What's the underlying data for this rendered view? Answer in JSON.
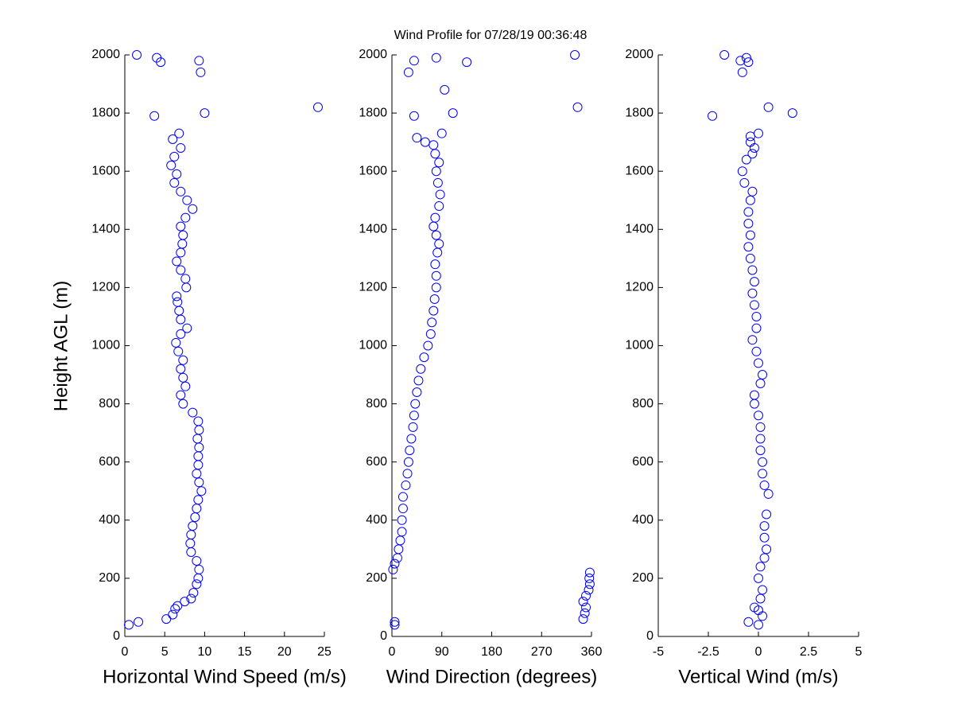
{
  "chart_data": [
    {
      "type": "scatter",
      "ylabel": "Height AGL (m)",
      "xlabel": "Horizontal Wind Speed (m/s)",
      "color": "#0000ff",
      "xlim": [
        0,
        25
      ],
      "xticks": [
        0,
        5,
        10,
        15,
        20,
        25
      ],
      "ylim": [
        0,
        2000
      ],
      "yticks": [
        0,
        200,
        400,
        600,
        800,
        1000,
        1200,
        1400,
        1600,
        1800,
        2000
      ],
      "x": [
        1.5,
        4,
        4.5,
        9.3,
        9.5,
        10,
        24.2,
        3.7,
        0.5,
        1.7,
        5.2,
        6,
        6.3,
        6.6,
        7.5,
        8.3,
        8.6,
        9,
        9.2,
        9.3,
        9,
        8.3,
        8.2,
        8.3,
        8.5,
        8.8,
        9,
        9.2,
        9.6,
        9.3,
        9,
        9.2,
        9.2,
        9.3,
        9.1,
        9.3,
        9.2,
        8.5,
        7.3,
        7,
        7.6,
        7.3,
        7,
        7.3,
        6.7,
        6.4,
        7,
        7.8,
        7,
        6.8,
        6.6,
        6.5,
        7.7,
        7.6,
        7,
        6.5,
        7,
        7.2,
        7.3,
        7,
        7.6,
        8.5,
        7.8,
        7,
        6.2,
        6.5,
        5.8,
        6.2,
        7,
        6,
        6.8
      ],
      "y": [
        2000,
        1990,
        1975,
        1980,
        1940,
        1800,
        1820,
        1790,
        40,
        50,
        60,
        75,
        95,
        105,
        120,
        130,
        150,
        180,
        200,
        230,
        260,
        290,
        320,
        350,
        380,
        410,
        440,
        470,
        500,
        530,
        560,
        590,
        620,
        650,
        680,
        710,
        740,
        770,
        800,
        830,
        860,
        890,
        920,
        950,
        980,
        1010,
        1040,
        1060,
        1090,
        1120,
        1150,
        1170,
        1200,
        1230,
        1260,
        1290,
        1320,
        1350,
        1380,
        1410,
        1440,
        1470,
        1500,
        1530,
        1560,
        1590,
        1620,
        1650,
        1680,
        1710,
        1730
      ]
    },
    {
      "type": "scatter",
      "title": "Wind Profile for  07/28/19 00:36:48",
      "xlabel": "Wind Direction (degrees)",
      "color": "#0000ff",
      "xlim": [
        0,
        360
      ],
      "xticks": [
        0,
        90,
        180,
        270,
        360
      ],
      "ylim": [
        0,
        2000
      ],
      "yticks": [
        0,
        200,
        400,
        600,
        800,
        1000,
        1200,
        1400,
        1600,
        1800,
        2000
      ],
      "x": [
        80,
        30,
        40,
        135,
        95,
        330,
        335,
        40,
        110,
        90,
        345,
        348,
        350,
        345,
        350,
        355,
        357,
        356,
        357,
        5,
        5,
        2,
        5,
        10,
        12,
        15,
        18,
        18,
        20,
        20,
        25,
        28,
        30,
        32,
        35,
        38,
        40,
        42,
        45,
        48,
        52,
        58,
        65,
        70,
        72,
        75,
        77,
        80,
        80,
        78,
        82,
        85,
        80,
        75,
        78,
        85,
        87,
        83,
        80,
        85,
        78,
        75,
        60,
        45
      ],
      "y": [
        1990,
        1940,
        1980,
        1975,
        1880,
        2000,
        1820,
        1790,
        1800,
        1730,
        60,
        80,
        100,
        120,
        140,
        160,
        180,
        200,
        220,
        40,
        50,
        230,
        250,
        270,
        300,
        330,
        360,
        400,
        440,
        480,
        520,
        560,
        600,
        640,
        680,
        720,
        760,
        800,
        840,
        880,
        920,
        960,
        1000,
        1040,
        1080,
        1120,
        1160,
        1200,
        1240,
        1280,
        1320,
        1350,
        1380,
        1410,
        1440,
        1480,
        1520,
        1560,
        1600,
        1630,
        1660,
        1690,
        1700,
        1715
      ]
    },
    {
      "type": "scatter",
      "xlabel": "Vertical Wind (m/s)",
      "color": "#0000ff",
      "xlim": [
        -5,
        5
      ],
      "xticks": [
        -5,
        -2.5,
        0,
        2.5,
        5
      ],
      "ylim": [
        0,
        2000
      ],
      "yticks": [
        0,
        200,
        400,
        600,
        800,
        1000,
        1200,
        1400,
        1600,
        1800,
        2000
      ],
      "x": [
        -1.7,
        -0.6,
        -0.9,
        -0.5,
        -0.8,
        0.5,
        1.7,
        -2.3,
        -0.5,
        0,
        0.2,
        0,
        -0.2,
        0.1,
        0.2,
        0,
        0.1,
        0.3,
        0.4,
        0.3,
        0.3,
        0.4,
        0.5,
        0.3,
        0.2,
        0.2,
        0.1,
        0.1,
        0.1,
        0,
        -0.2,
        -0.2,
        0.1,
        0.2,
        0,
        -0.1,
        -0.3,
        -0.1,
        -0.1,
        -0.2,
        -0.3,
        -0.2,
        -0.3,
        -0.4,
        -0.5,
        -0.4,
        -0.5,
        -0.5,
        -0.4,
        -0.3,
        -0.7,
        -0.8,
        -0.6,
        -0.3,
        -0.2,
        0,
        -0.4,
        -0.4
      ],
      "y": [
        2000,
        1990,
        1980,
        1975,
        1940,
        1820,
        1800,
        1790,
        50,
        40,
        70,
        90,
        100,
        130,
        160,
        200,
        240,
        270,
        300,
        340,
        380,
        420,
        490,
        520,
        560,
        600,
        640,
        680,
        720,
        760,
        800,
        830,
        870,
        900,
        940,
        980,
        1020,
        1060,
        1100,
        1140,
        1180,
        1220,
        1260,
        1300,
        1340,
        1380,
        1420,
        1460,
        1500,
        1530,
        1560,
        1600,
        1640,
        1660,
        1680,
        1730,
        1700,
        1720
      ]
    }
  ]
}
